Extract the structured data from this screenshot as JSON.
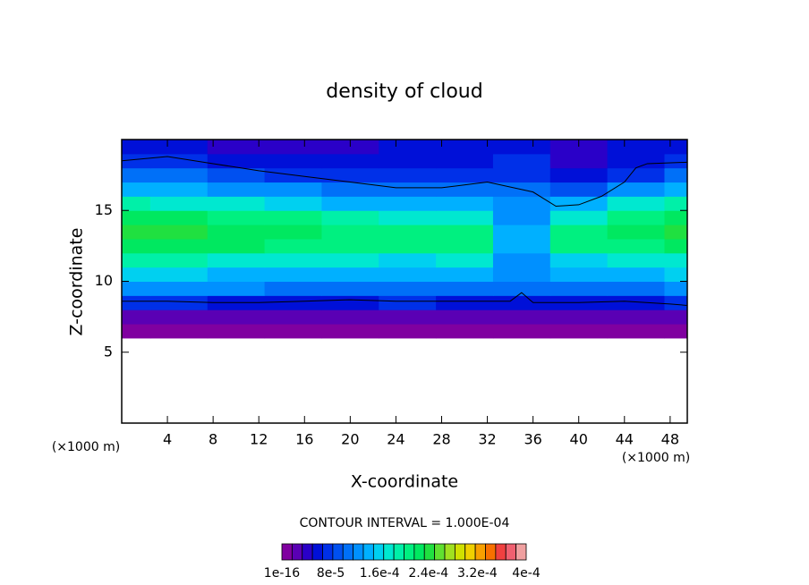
{
  "chart_data": {
    "type": "contour",
    "title": "density of cloud",
    "xlabel": "X-coordinate",
    "ylabel": "Z-coordinate",
    "xunit": "(×1000 m)",
    "yunit": "(×1000 m)",
    "note": "CONTOUR INTERVAL = 1.000E-04",
    "xlim": [
      0,
      49.5
    ],
    "ylim": [
      0,
      20
    ],
    "xticks": [
      4,
      8,
      12,
      16,
      20,
      24,
      28,
      32,
      36,
      40,
      44,
      48
    ],
    "yticks": [
      5,
      10,
      15
    ],
    "x": [
      0,
      5,
      10,
      15,
      20,
      25,
      30,
      35,
      40,
      45,
      50
    ],
    "y": [
      6.5,
      7.5,
      8.5,
      9.5,
      10.5,
      11.5,
      12.5,
      13.5,
      14.5,
      15.5,
      16.5,
      17.5,
      18.5,
      19.5
    ],
    "z": [
      [
        1e-05,
        1e-05,
        1e-05,
        1e-05,
        1e-05,
        1e-05,
        1e-05,
        1e-05,
        1e-05,
        1e-05,
        1e-05
      ],
      [
        3e-05,
        3e-05,
        3e-05,
        3e-05,
        3e-05,
        3e-05,
        3e-05,
        3e-05,
        3e-05,
        3e-05,
        3e-05
      ],
      [
        7e-05,
        8e-05,
        6e-05,
        6e-05,
        6e-05,
        7e-05,
        6e-05,
        6e-05,
        6e-05,
        6e-05,
        7e-05
      ],
      [
        0.00012,
        0.00013,
        0.00012,
        0.00011,
        0.00011,
        0.00011,
        0.00011,
        0.00011,
        0.00011,
        0.00011,
        0.00012
      ],
      [
        0.00016,
        0.00016,
        0.00015,
        0.00015,
        0.00014,
        0.00014,
        0.00014,
        0.00012,
        0.00014,
        0.00015,
        0.00016
      ],
      [
        0.00019,
        0.00019,
        0.00018,
        0.00017,
        0.00017,
        0.00016,
        0.00017,
        0.00013,
        0.00016,
        0.00017,
        0.00018
      ],
      [
        0.00023,
        0.00023,
        0.00022,
        0.00021,
        0.0002,
        0.0002,
        0.0002,
        0.00014,
        0.0002,
        0.00021,
        0.00022
      ],
      [
        0.00024,
        0.00024,
        0.00023,
        0.00022,
        0.00021,
        0.00021,
        0.00021,
        0.00014,
        0.00021,
        0.00022,
        0.00024
      ],
      [
        0.00022,
        0.00022,
        0.00021,
        0.0002,
        0.00019,
        0.00018,
        0.00018,
        0.00013,
        0.00018,
        0.0002,
        0.00022
      ],
      [
        0.00019,
        0.00018,
        0.00017,
        0.00016,
        0.00015,
        0.00014,
        0.00014,
        0.00012,
        0.00014,
        0.00017,
        0.00019
      ],
      [
        0.00015,
        0.00014,
        0.00013,
        0.00012,
        0.00011,
        0.0001,
        0.00011,
        0.0001,
        9e-05,
        0.00012,
        0.00014
      ],
      [
        0.00011,
        0.0001,
        9e-05,
        8e-05,
        7e-05,
        8e-05,
        8e-05,
        8e-05,
        6e-05,
        8e-05,
        0.0001
      ],
      [
        8e-05,
        7e-05,
        6e-05,
        5e-05,
        5e-05,
        6e-05,
        6e-05,
        7e-05,
        4e-05,
        5e-05,
        8e-05
      ],
      [
        6e-05,
        5e-05,
        4e-05,
        4e-05,
        4e-05,
        5e-05,
        5e-05,
        5e-05,
        4e-05,
        6e-05,
        6e-05
      ]
    ],
    "contours": [
      {
        "x": [
          0,
          4,
          8,
          12,
          16,
          20,
          24,
          28,
          32,
          36,
          38,
          40,
          42,
          44,
          45,
          46,
          49.5
        ],
        "y": [
          18.5,
          18.8,
          18.3,
          17.8,
          17.4,
          17.0,
          16.6,
          16.6,
          17.0,
          16.3,
          15.3,
          15.4,
          16.0,
          17.0,
          18.0,
          18.3,
          18.4
        ]
      },
      {
        "x": [
          0,
          4,
          8,
          12,
          16,
          20,
          24,
          28,
          32,
          34,
          35,
          36,
          40,
          44,
          48,
          49.5
        ],
        "y": [
          8.6,
          8.6,
          8.5,
          8.5,
          8.6,
          8.7,
          8.6,
          8.6,
          8.6,
          8.6,
          9.2,
          8.5,
          8.5,
          8.6,
          8.4,
          8.3
        ]
      }
    ],
    "clim": [
      0,
      0.0004
    ],
    "colors": [
      "#8000a0",
      "#5a00b4",
      "#2a00c8",
      "#0010d8",
      "#0030e8",
      "#0050f0",
      "#0070f8",
      "#0090ff",
      "#00b0ff",
      "#00d0f0",
      "#00e8d0",
      "#00f0a8",
      "#00f080",
      "#00e860",
      "#20e040",
      "#60e030",
      "#a0e020",
      "#d0e000",
      "#f0d000",
      "#f8a000",
      "#f87000",
      "#f04040",
      "#f06070",
      "#f0a0a0"
    ],
    "cticks": [
      {
        "value": 1e-16,
        "label": "1e-16"
      },
      {
        "value": 8e-05,
        "label": "8e-5"
      },
      {
        "value": 0.00016,
        "label": "1.6e-4"
      },
      {
        "value": 0.00024,
        "label": "2.4e-4"
      },
      {
        "value": 0.00032,
        "label": "3.2e-4"
      },
      {
        "value": 0.0004,
        "label": "4e-4"
      }
    ]
  }
}
